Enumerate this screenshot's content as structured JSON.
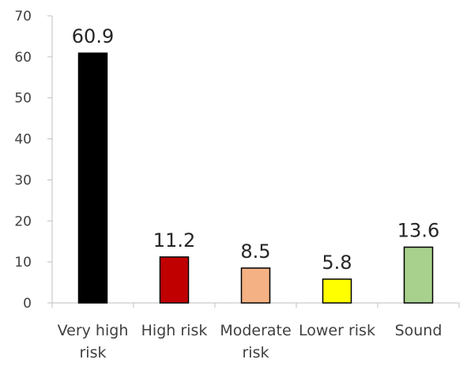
{
  "chart_data": {
    "type": "bar",
    "title": "",
    "xlabel": "",
    "ylabel": "",
    "categories": [
      [
        "Very high",
        "risk"
      ],
      [
        "High risk"
      ],
      [
        "Moderate",
        "risk"
      ],
      [
        "Lower risk"
      ],
      [
        "Sound"
      ]
    ],
    "values": [
      60.9,
      11.2,
      8.5,
      5.8,
      13.6
    ],
    "value_labels": [
      "60.9",
      "11.2",
      "8.5",
      "5.8",
      "13.6"
    ],
    "bar_colors": [
      "#000000",
      "#c00000",
      "#f4b183",
      "#ffff00",
      "#a9d18e"
    ],
    "ylim": [
      0,
      70
    ],
    "yticks": [
      0,
      10,
      20,
      30,
      40,
      50,
      60,
      70
    ],
    "grid": false,
    "legend": "none"
  }
}
